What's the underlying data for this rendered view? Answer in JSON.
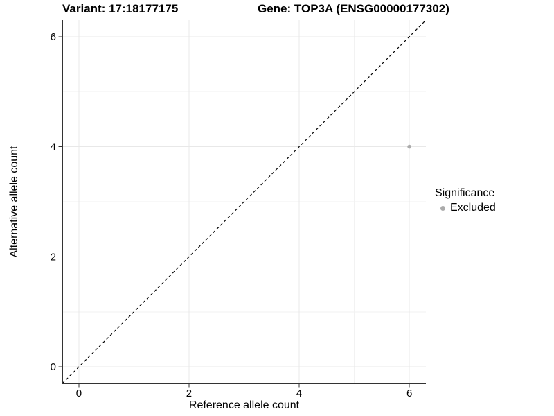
{
  "titles": {
    "left": "Variant: 17:18177175",
    "right": "Gene: TOP3A (ENSG00000177302)"
  },
  "chart_data": {
    "type": "scatter",
    "xlabel": "Reference allele count",
    "ylabel": "Alternative allele count",
    "xlim": [
      -0.3,
      6.3
    ],
    "ylim": [
      -0.3,
      6.3
    ],
    "xticks": [
      0,
      2,
      4,
      6
    ],
    "yticks": [
      0,
      2,
      4,
      6
    ],
    "minor_xticks": [
      1,
      3,
      5
    ],
    "minor_yticks": [
      1,
      3,
      5
    ],
    "grid": true,
    "points": [
      {
        "x": 6,
        "y": 4,
        "series": "Excluded"
      }
    ],
    "reference_line": {
      "type": "identity",
      "style": "dashed",
      "color": "#000000"
    },
    "legend": {
      "title": "Significance",
      "position": "right",
      "entries": [
        {
          "label": "Excluded",
          "color": "#ababab"
        }
      ]
    },
    "colors": {
      "point": "#ababab",
      "grid_major": "#e8e8e8",
      "grid_minor": "#f2f2f2",
      "axis": "#333333"
    }
  }
}
